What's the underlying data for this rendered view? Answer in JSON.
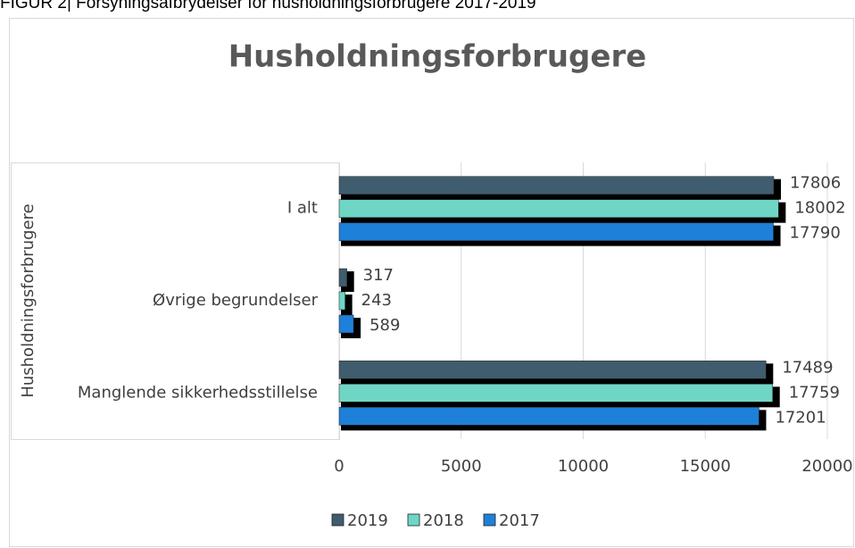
{
  "caption": "FIGUR 2| Forsyningsafbrydelser for husholdningsforbrugere 2017-2019",
  "chart_data": {
    "type": "bar",
    "orientation": "horizontal",
    "title": "Husholdningsforbrugere",
    "y_label": "Husholdningsforbrugere",
    "categories": [
      "I alt",
      "Øvrige begrundelser",
      "Manglende sikkerhedsstillelse"
    ],
    "series": [
      {
        "name": "2019",
        "color": "#3f5d6e",
        "values": [
          17806,
          317,
          17489
        ]
      },
      {
        "name": "2018",
        "color": "#6fd6c6",
        "values": [
          18002,
          243,
          17759
        ]
      },
      {
        "name": "2017",
        "color": "#1e80d8",
        "values": [
          17790,
          589,
          17201
        ]
      }
    ],
    "xlim": [
      0,
      20000
    ],
    "xticks": [
      0,
      5000,
      10000,
      15000,
      20000
    ],
    "grid": true,
    "legend": "bottom"
  }
}
